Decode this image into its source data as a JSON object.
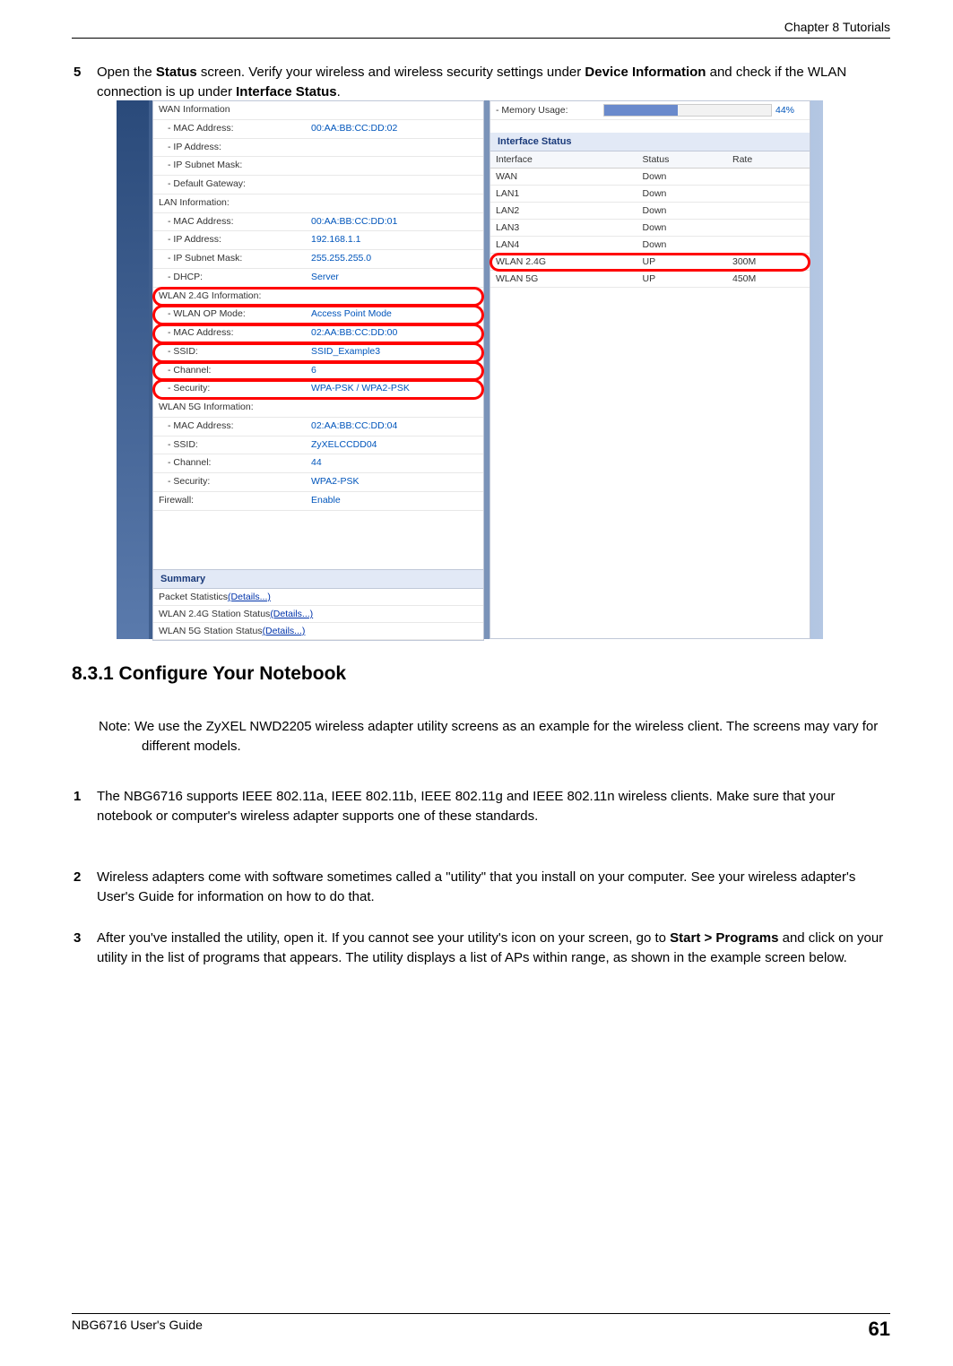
{
  "header": {
    "chapter": "Chapter 8 Tutorials"
  },
  "step5": {
    "num": "5",
    "pre": "Open the ",
    "b1": "Status",
    "mid1": " screen. Verify your wireless and wireless security settings under ",
    "b2": "Device Information",
    "mid2": " and check if the WLAN connection is up under ",
    "b3": "Interface Status",
    "end": "."
  },
  "left_rows": [
    {
      "label": "WAN Information",
      "val": "",
      "sub": false
    },
    {
      "label": "- MAC Address:",
      "val": "00:AA:BB:CC:DD:02",
      "sub": true
    },
    {
      "label": "- IP Address:",
      "val": "",
      "sub": true
    },
    {
      "label": "- IP Subnet Mask:",
      "val": "",
      "sub": true
    },
    {
      "label": "- Default Gateway:",
      "val": "",
      "sub": true
    },
    {
      "label": "LAN Information:",
      "val": "",
      "sub": false
    },
    {
      "label": "- MAC Address:",
      "val": "00:AA:BB:CC:DD:01",
      "sub": true
    },
    {
      "label": "- IP Address:",
      "val": "192.168.1.1",
      "sub": true
    },
    {
      "label": "- IP Subnet Mask:",
      "val": "255.255.255.0",
      "sub": true
    },
    {
      "label": "- DHCP:",
      "val": "Server",
      "sub": true
    },
    {
      "label": "WLAN 2.4G Information:",
      "val": "",
      "sub": false,
      "hl": true
    },
    {
      "label": "- WLAN OP Mode:",
      "val": "Access Point Mode",
      "sub": true,
      "hl": true
    },
    {
      "label": "- MAC Address:",
      "val": "02:AA:BB:CC:DD:00",
      "sub": true,
      "hl": true
    },
    {
      "label": "- SSID:",
      "val": "SSID_Example3",
      "sub": true,
      "hl": true
    },
    {
      "label": "- Channel:",
      "val": "6",
      "sub": true,
      "hl": true
    },
    {
      "label": "- Security:",
      "val": "WPA-PSK / WPA2-PSK",
      "sub": true,
      "hl": true
    },
    {
      "label": "WLAN 5G Information:",
      "val": "",
      "sub": false
    },
    {
      "label": "- MAC Address:",
      "val": "02:AA:BB:CC:DD:04",
      "sub": true
    },
    {
      "label": "- SSID:",
      "val": "ZyXELCCDD04",
      "sub": true
    },
    {
      "label": "- Channel:",
      "val": "44",
      "sub": true
    },
    {
      "label": "- Security:",
      "val": "WPA2-PSK",
      "sub": true
    },
    {
      "label": "Firewall:",
      "val": "Enable",
      "sub": false
    }
  ],
  "mem": {
    "label": "- Memory Usage:",
    "pct_text": "44%",
    "pct_width": "44%"
  },
  "if_header": "Interface Status",
  "if_cols": [
    "Interface",
    "Status",
    "Rate"
  ],
  "if_rows": [
    {
      "c": [
        "WAN",
        "Down",
        ""
      ],
      "hl": false
    },
    {
      "c": [
        "LAN1",
        "Down",
        ""
      ],
      "hl": false
    },
    {
      "c": [
        "LAN2",
        "Down",
        ""
      ],
      "hl": false
    },
    {
      "c": [
        "LAN3",
        "Down",
        ""
      ],
      "hl": false
    },
    {
      "c": [
        "LAN4",
        "Down",
        ""
      ],
      "hl": false
    },
    {
      "c": [
        "WLAN 2.4G",
        "UP",
        "300M"
      ],
      "hl": true
    },
    {
      "c": [
        "WLAN 5G",
        "UP",
        "450M"
      ],
      "hl": false
    }
  ],
  "summary_header": "Summary",
  "summary_rows": [
    {
      "t": "Packet Statistics",
      "l": "(Details...)"
    },
    {
      "t": "WLAN 2.4G Station Status",
      "l": "(Details...)"
    },
    {
      "t": "WLAN 5G Station Status",
      "l": "(Details...)"
    }
  ],
  "heading": "8.3.1  Configure Your Notebook",
  "note": {
    "prefix": "Note: ",
    "text": "We use the ZyXEL NWD2205 wireless adapter utility screens as an example for the wireless client. The screens may vary for different models."
  },
  "steps": [
    {
      "n": "1",
      "pre": "The NBG6716 supports IEEE 802.11a, IEEE 802.11b, IEEE 802.11g and IEEE 802.11n wireless clients. Make sure that your notebook or computer's wireless adapter supports one of these standards."
    },
    {
      "n": "2",
      "pre": "Wireless adapters come with software sometimes called a \"utility\" that you install on your computer. See your wireless adapter's User's Guide for information on how to do that."
    },
    {
      "n": "3",
      "pre": "After you've installed the utility, open it. If you cannot see your utility's icon on your screen, go to ",
      "b": "Start > Programs",
      "post": " and click on your utility in the list of programs that appears. The utility displays a list of APs within range, as shown in the example screen below."
    }
  ],
  "footer": {
    "guide": "NBG6716 User's Guide",
    "page": "61"
  }
}
